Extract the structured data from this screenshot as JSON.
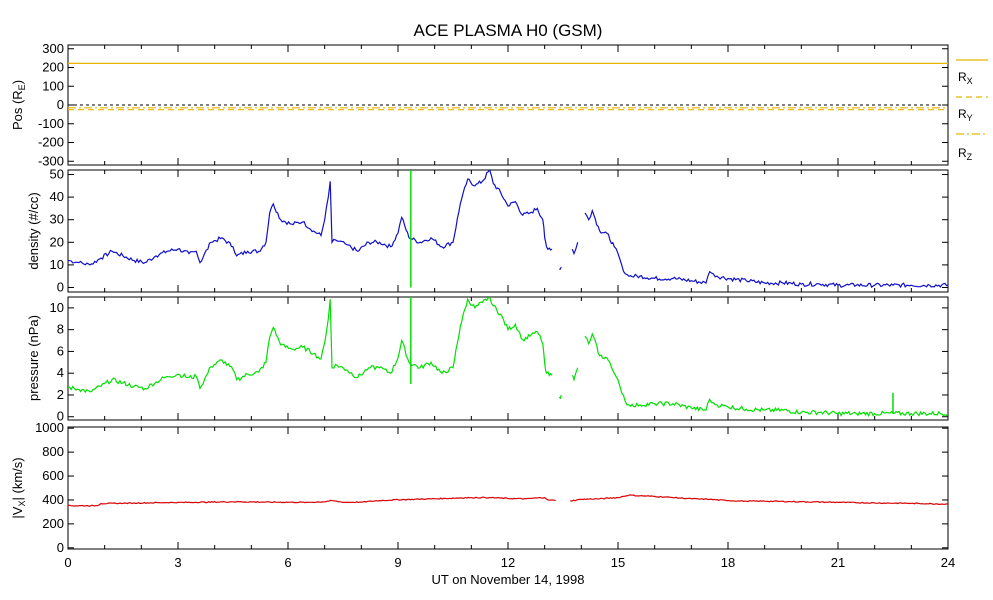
{
  "chart_data": {
    "type": "line",
    "title": "ACE PLASMA H0 (GSM)",
    "xlabel": "UT on November 14, 1998",
    "x_ticks": [
      "0",
      "3",
      "6",
      "9",
      "12",
      "15",
      "18",
      "21",
      "24"
    ],
    "xlim": [
      0,
      24
    ],
    "colors": {
      "position": "#e8b400",
      "density": "#1010c8",
      "pressure": "#00e000",
      "velocity": "#d80000",
      "zero_line": "#000000"
    },
    "panels": [
      {
        "name": "position",
        "ylabel_parts": [
          "Pos (R",
          "E",
          ")"
        ],
        "ylim": [
          -320,
          320
        ],
        "y_ticks": [
          "300",
          "200",
          "100",
          "0",
          "-100",
          "-200",
          "-300"
        ],
        "legend": [
          {
            "main": "R",
            "sub": "X",
            "style": "solid"
          },
          {
            "main": "R",
            "sub": "Y",
            "style": "dashed"
          },
          {
            "main": "R",
            "sub": "Z",
            "style": "dashdot"
          }
        ],
        "series": [
          {
            "name": "R_X",
            "x": [
              0,
              24
            ],
            "y": [
              222,
              222
            ]
          },
          {
            "name": "R_Y",
            "x": [
              0,
              24
            ],
            "y": [
              -25,
              -25
            ]
          },
          {
            "name": "R_Z",
            "x": [
              0,
              24
            ],
            "y": [
              -15,
              -15
            ]
          }
        ]
      },
      {
        "name": "density",
        "ylabel": "density (#/cc)",
        "ylim": [
          -2,
          52
        ],
        "y_ticks": [
          "50",
          "40",
          "30",
          "20",
          "10",
          "0"
        ],
        "series": [
          {
            "name": "density",
            "x": [
              0,
              0.3,
              0.6,
              0.9,
              1.2,
              1.5,
              1.8,
              2.1,
              2.4,
              2.7,
              3.0,
              3.3,
              3.5,
              3.6,
              3.9,
              4.2,
              4.5,
              4.6,
              4.9,
              5.2,
              5.4,
              5.5,
              5.6,
              5.8,
              6.1,
              6.4,
              6.7,
              6.9,
              7.0,
              7.1,
              7.15,
              7.2,
              7.3,
              7.6,
              7.9,
              8.2,
              8.5,
              8.8,
              9.0,
              9.1,
              9.3,
              9.6,
              9.9,
              10.2,
              10.5,
              10.7,
              10.9,
              11.1,
              11.3,
              11.5,
              11.6,
              11.8,
              12.0,
              12.2,
              12.4,
              12.6,
              12.8,
              12.95,
              13.0,
              13.05,
              13.2,
              13.3,
              13.4,
              13.45,
              13.7,
              13.75,
              13.8,
              13.9,
              14.0,
              14.1,
              14.2,
              14.3,
              14.5,
              14.7,
              14.9,
              15.0,
              15.1,
              15.2,
              15.3,
              15.6,
              16.0,
              16.5,
              17.0,
              17.4,
              17.5,
              17.6,
              17.7,
              18.0,
              18.5,
              19.0,
              19.5,
              20.0,
              20.5,
              21.0,
              21.5,
              22.0,
              22.5,
              23.0,
              23.5,
              24.0
            ],
            "y": [
              12,
              11,
              10,
              13,
              16,
              14,
              12,
              11,
              14,
              16,
              17,
              15,
              16,
              11,
              20,
              22,
              18,
              14,
              16,
              16,
              20,
              33,
              37,
              30,
              28,
              29,
              25,
              23,
              30,
              40,
              47,
              20,
              21,
              19,
              16,
              20,
              20,
              18,
              24,
              31,
              22,
              20,
              22,
              18,
              20,
              37,
              48,
              45,
              47,
              52,
              46,
              42,
              36,
              38,
              32,
              33,
              35,
              30,
              22,
              18,
              17,
              null,
              8,
              9,
              null,
              17,
              15,
              20,
              null,
              33,
              30,
              34,
              25,
              24,
              18,
              15,
              10,
              6,
              5,
              5,
              4,
              4,
              3,
              2,
              7,
              6,
              5,
              4,
              3,
              2,
              2,
              1.5,
              1.5,
              1,
              1,
              1,
              1,
              1,
              1,
              1
            ]
          }
        ]
      },
      {
        "name": "pressure",
        "ylabel": "pressure (nPa)",
        "ylim": [
          -0.3,
          11
        ],
        "y_ticks": [
          "10",
          "8",
          "6",
          "4",
          "2",
          "0"
        ],
        "series": [
          {
            "name": "pressure",
            "x": [
              0,
              0.3,
              0.6,
              0.9,
              1.2,
              1.5,
              1.8,
              2.1,
              2.4,
              2.7,
              3.0,
              3.3,
              3.5,
              3.6,
              3.9,
              4.2,
              4.5,
              4.6,
              4.9,
              5.2,
              5.4,
              5.5,
              5.6,
              5.8,
              6.1,
              6.4,
              6.7,
              6.9,
              7.0,
              7.1,
              7.15,
              7.2,
              7.3,
              7.6,
              7.9,
              8.2,
              8.5,
              8.8,
              9.0,
              9.1,
              9.3,
              9.6,
              9.9,
              10.2,
              10.5,
              10.7,
              10.9,
              11.1,
              11.3,
              11.5,
              11.6,
              11.8,
              12.0,
              12.2,
              12.4,
              12.6,
              12.8,
              12.95,
              13.0,
              13.05,
              13.2,
              13.3,
              13.4,
              13.45,
              13.7,
              13.75,
              13.8,
              13.9,
              14.0,
              14.1,
              14.2,
              14.3,
              14.5,
              14.7,
              14.9,
              15.0,
              15.1,
              15.2,
              15.3,
              15.6,
              16.0,
              16.5,
              17.0,
              17.4,
              17.5,
              17.6,
              17.7,
              18.0,
              18.5,
              19.0,
              19.5,
              20.0,
              20.5,
              21.0,
              21.5,
              22.0,
              22.5,
              23.0,
              23.5,
              24.0
            ],
            "y": [
              2.7,
              2.5,
              2.3,
              2.8,
              3.4,
              3.1,
              2.8,
              2.6,
              3.2,
              3.7,
              3.9,
              3.6,
              3.7,
              2.6,
              4.6,
              5.2,
              4.3,
              3.4,
              3.9,
              4.1,
              5.0,
              7.3,
              8.2,
              6.6,
              6.2,
              6.4,
              5.8,
              5.3,
              6.8,
              9.0,
              10.8,
              4.5,
              4.8,
              4.3,
              3.6,
              4.5,
              4.5,
              4.0,
              5.4,
              7.0,
              5.0,
              4.5,
              5.0,
              4.0,
              4.5,
              8.3,
              10.8,
              10.0,
              10.5,
              11.0,
              10.2,
              9.4,
              8.0,
              8.5,
              7.1,
              7.4,
              7.8,
              6.7,
              4.9,
              4.0,
              3.8,
              null,
              1.8,
              2.0,
              null,
              3.8,
              3.4,
              4.5,
              null,
              7.4,
              6.7,
              7.6,
              5.6,
              5.4,
              4.0,
              3.4,
              2.2,
              1.4,
              1.1,
              1.1,
              1.2,
              1.2,
              0.8,
              0.6,
              1.6,
              1.3,
              1.1,
              0.9,
              0.7,
              0.6,
              0.6,
              0.4,
              0.4,
              0.3,
              0.3,
              0.3,
              0.3,
              0.3,
              0.3,
              0.3
            ]
          }
        ]
      },
      {
        "name": "velocity",
        "ylabel_parts": [
          "|V",
          "X",
          "| (km/s)"
        ],
        "ylim": [
          -10,
          1010
        ],
        "y_ticks": [
          "1000",
          "800",
          "600",
          "400",
          "200",
          "0"
        ],
        "series": [
          {
            "name": "vx",
            "x": [
              0,
              0.8,
              0.9,
              1.5,
              2.5,
              3.5,
              4.5,
              5.5,
              6.5,
              7.0,
              7.2,
              7.5,
              8.0,
              8.5,
              9.0,
              10.0,
              11.0,
              11.5,
              12.0,
              12.5,
              13.0,
              13.1,
              13.3,
              13.6,
              13.7,
              14.0,
              14.5,
              15.0,
              15.3,
              15.6,
              16.0,
              16.5,
              17.0,
              17.5,
              18.0,
              18.5,
              19.0,
              20.0,
              21.0,
              22.0,
              23.0,
              24.0
            ],
            "y": [
              352,
              352,
              370,
              372,
              378,
              380,
              385,
              382,
              380,
              385,
              395,
              380,
              382,
              395,
              402,
              410,
              420,
              420,
              412,
              410,
              420,
              400,
              395,
              null,
              392,
              405,
              410,
              420,
              440,
              435,
              430,
              420,
              410,
              405,
              395,
              390,
              390,
              385,
              380,
              375,
              372,
              365
            ]
          }
        ]
      }
    ]
  }
}
